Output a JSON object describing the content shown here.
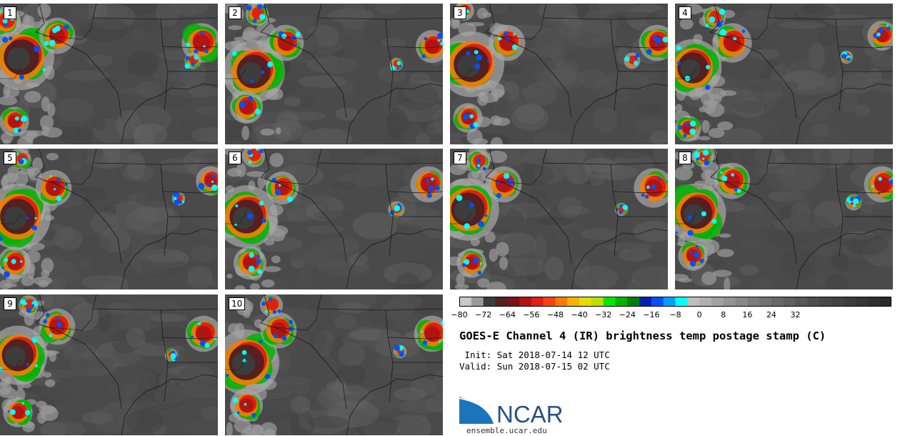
{
  "panels": [
    {
      "label": "1"
    },
    {
      "label": "2"
    },
    {
      "label": "3"
    },
    {
      "label": "4"
    },
    {
      "label": "5"
    },
    {
      "label": "6"
    },
    {
      "label": "7"
    },
    {
      "label": "8"
    },
    {
      "label": "9"
    },
    {
      "label": "10"
    }
  ],
  "colorbar": {
    "ticks": [
      "−80",
      "−72",
      "−64",
      "−56",
      "−48",
      "−40",
      "−32",
      "−24",
      "−16",
      "−8",
      "0",
      "8",
      "16",
      "24",
      "32"
    ],
    "colors": [
      "#c8c8c8",
      "#9a9a9a",
      "#3c3c3c",
      "#552020",
      "#7a1414",
      "#b41410",
      "#e02010",
      "#ff4010",
      "#f47c00",
      "#f4b400",
      "#e6dc00",
      "#c0dc00",
      "#00e800",
      "#00b400",
      "#008000",
      "#0020b0",
      "#0050ff",
      "#00a0ff",
      "#00ffff",
      "#bebebe",
      "#b0b0b0",
      "#a2a2a2",
      "#949494",
      "#888888",
      "#7c7c7c",
      "#727272",
      "#686868",
      "#5e5e5e",
      "#565656",
      "#4e4e4e",
      "#484848",
      "#424242",
      "#3c3c3c",
      "#363636",
      "#303030",
      "#2a2a2a"
    ]
  },
  "title": "GOES-E Channel 4 (IR) brightness temp postage stamp (C)",
  "init": " Init: Sat 2018-07-14 12 UTC",
  "valid": "Valid: Sun 2018-07-15 02 UTC",
  "logo_text": "NCAR",
  "site": "ensemble.ucar.edu"
}
